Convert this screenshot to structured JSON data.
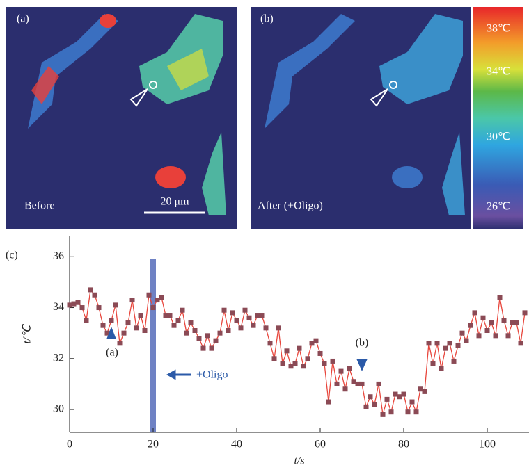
{
  "panels": {
    "a": {
      "label": "(a)",
      "caption": "Before",
      "scale_bar": "20 μm"
    },
    "b": {
      "label": "(b)",
      "caption": "After (+Oligo)"
    },
    "colorbar_labels": [
      "38℃",
      "34℃",
      "30℃",
      "26℃"
    ]
  },
  "chart_data": {
    "type": "line",
    "panel_label": "(c)",
    "xlabel": "t/s",
    "ylabel": "t/℃",
    "xlim": [
      0,
      110
    ],
    "xticks": [
      0,
      20,
      40,
      60,
      80,
      100
    ],
    "ylim": [
      29.1,
      36.8
    ],
    "yticks": [
      30,
      32,
      34,
      36
    ],
    "events": [
      {
        "label": "+Oligo",
        "x": 20,
        "color": "#6f82c4"
      }
    ],
    "annotations": [
      {
        "text": "(a)",
        "x": 10,
        "direction": "up"
      },
      {
        "text": "(b)",
        "x": 70,
        "direction": "down"
      }
    ],
    "x": [
      0,
      1,
      2,
      3,
      4,
      5,
      6,
      7,
      8,
      9,
      10,
      11,
      12,
      13,
      14,
      15,
      16,
      17,
      18,
      19,
      20,
      21,
      22,
      23,
      24,
      25,
      26,
      27,
      28,
      29,
      30,
      31,
      32,
      33,
      34,
      35,
      36,
      37,
      38,
      39,
      40,
      41,
      42,
      43,
      44,
      45,
      46,
      47,
      48,
      49,
      50,
      51,
      52,
      53,
      54,
      55,
      56,
      57,
      58,
      59,
      60,
      61,
      62,
      63,
      64,
      65,
      66,
      67,
      68,
      69,
      70,
      71,
      72,
      73,
      74,
      75,
      76,
      77,
      78,
      79,
      80,
      81,
      82,
      83,
      84,
      85,
      86,
      87,
      88,
      89,
      90,
      91,
      92,
      93,
      94,
      95,
      96,
      97,
      98,
      99,
      100,
      101,
      102,
      103,
      104,
      105,
      106,
      107,
      108,
      109
    ],
    "series": [
      {
        "color": "#e8463c",
        "marker_color": "#8b4a55",
        "values": [
          34.1,
          34.15,
          34.2,
          34.0,
          33.5,
          34.7,
          34.5,
          34.0,
          33.3,
          33.0,
          33.5,
          34.1,
          32.6,
          33.0,
          33.4,
          34.3,
          33.2,
          33.7,
          33.1,
          34.5,
          34.0,
          34.3,
          34.4,
          33.7,
          33.7,
          33.3,
          33.5,
          33.9,
          33.0,
          33.4,
          33.1,
          32.8,
          32.4,
          32.9,
          32.4,
          32.7,
          33.0,
          33.9,
          33.1,
          33.8,
          33.5,
          33.2,
          33.9,
          33.6,
          33.3,
          33.7,
          33.7,
          33.2,
          32.6,
          32.0,
          33.2,
          31.8,
          32.3,
          31.7,
          31.8,
          32.4,
          31.7,
          32.0,
          32.6,
          32.7,
          32.2,
          31.8,
          30.3,
          31.9,
          31.0,
          31.5,
          30.8,
          31.6,
          31.1,
          31.0,
          31.0,
          30.1,
          30.5,
          30.2,
          31.0,
          29.8,
          30.4,
          29.9,
          30.6,
          30.5,
          30.6,
          29.9,
          30.3,
          29.9,
          30.8,
          30.7,
          32.6,
          31.8,
          32.6,
          31.6,
          32.4,
          32.6,
          31.9,
          32.5,
          33.0,
          32.7,
          33.3,
          33.8,
          32.9,
          33.6,
          33.1,
          33.4,
          32.9,
          34.4,
          33.5,
          32.9,
          33.4,
          33.4,
          32.6,
          33.8
        ]
      }
    ]
  }
}
